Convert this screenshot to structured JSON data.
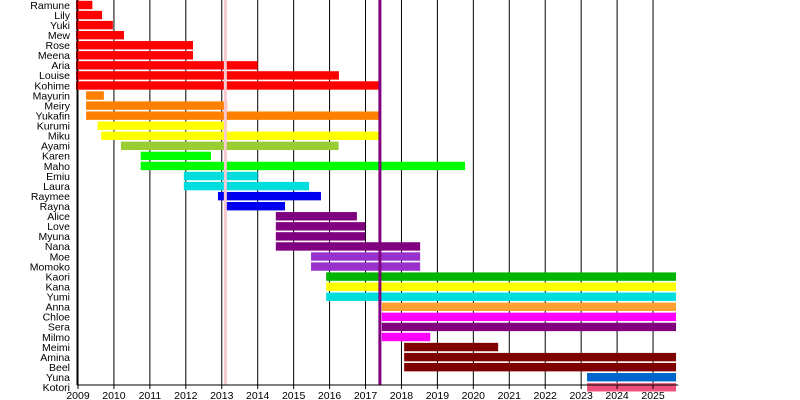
{
  "chart_data": {
    "type": "timeline",
    "title": "",
    "xlabel": "",
    "ylabel": "",
    "xlim": [
      2009,
      2025.7
    ],
    "x_ticks": [
      2009,
      2010,
      2011,
      2012,
      2013,
      2014,
      2015,
      2016,
      2017,
      2018,
      2019,
      2020,
      2021,
      2022,
      2023,
      2024,
      2025
    ],
    "grid": "vertical lines at each year",
    "markers": [
      {
        "x": 2013.1,
        "color": "#f8c8d0"
      },
      {
        "x": 2017.4,
        "color": "#800080"
      }
    ],
    "members": [
      {
        "name": "Ramune",
        "start": 2009.0,
        "end": 2009.4,
        "color": "#ff0000"
      },
      {
        "name": "Lily",
        "start": 2009.0,
        "end": 2009.67,
        "color": "#ff0000"
      },
      {
        "name": "Yuki",
        "start": 2009.0,
        "end": 2009.97,
        "color": "#ff0000"
      },
      {
        "name": "Mew",
        "start": 2009.0,
        "end": 2010.28,
        "color": "#ff0000"
      },
      {
        "name": "Rose",
        "start": 2009.0,
        "end": 2012.2,
        "color": "#ff0000"
      },
      {
        "name": "Meena",
        "start": 2009.0,
        "end": 2012.2,
        "color": "#ff0000"
      },
      {
        "name": "Aria",
        "start": 2009.0,
        "end": 2014.0,
        "color": "#ff0000"
      },
      {
        "name": "Louise",
        "start": 2009.0,
        "end": 2016.26,
        "color": "#ff0000"
      },
      {
        "name": "Kohime",
        "start": 2009.0,
        "end": 2017.4,
        "color": "#ff0000"
      },
      {
        "name": "Mayurin",
        "start": 2009.28,
        "end": 2009.72,
        "color": "#ff8000"
      },
      {
        "name": "Meiry",
        "start": 2009.28,
        "end": 2013.15,
        "color": "#ff8000"
      },
      {
        "name": "Yukafin",
        "start": 2009.28,
        "end": 2017.4,
        "color": "#ff8000"
      },
      {
        "name": "Kurumi",
        "start": 2009.6,
        "end": 2013.15,
        "color": "#ffff00"
      },
      {
        "name": "Miku",
        "start": 2009.7,
        "end": 2017.4,
        "color": "#ffff00"
      },
      {
        "name": "Ayami",
        "start": 2010.25,
        "end": 2016.25,
        "color": "#9acd32"
      },
      {
        "name": "Karen",
        "start": 2010.8,
        "end": 2012.7,
        "color": "#00ff00"
      },
      {
        "name": "Maho",
        "start": 2010.8,
        "end": 2019.77,
        "color": "#00ff00"
      },
      {
        "name": "Emiu",
        "start": 2012.0,
        "end": 2014.0,
        "color": "#00dddd"
      },
      {
        "name": "Laura",
        "start": 2012.0,
        "end": 2015.43,
        "color": "#00dddd"
      },
      {
        "name": "Raymee",
        "start": 2012.95,
        "end": 2015.76,
        "color": "#0000ee"
      },
      {
        "name": "Rayna",
        "start": 2013.12,
        "end": 2014.76,
        "color": "#0000ee"
      },
      {
        "name": "Alice",
        "start": 2014.56,
        "end": 2016.76,
        "color": "#800080"
      },
      {
        "name": "Love",
        "start": 2014.56,
        "end": 2016.99,
        "color": "#800080"
      },
      {
        "name": "Myuna",
        "start": 2014.56,
        "end": 2016.99,
        "color": "#800080"
      },
      {
        "name": "Nana",
        "start": 2014.56,
        "end": 2018.52,
        "color": "#800080"
      },
      {
        "name": "Moe",
        "start": 2015.54,
        "end": 2018.52,
        "color": "#9932cc"
      },
      {
        "name": "Momoko",
        "start": 2015.54,
        "end": 2018.52,
        "color": "#9932cc"
      },
      {
        "name": "Kaori",
        "start": 2015.96,
        "end": 2025.64,
        "color": "#00b400"
      },
      {
        "name": "Kana",
        "start": 2015.96,
        "end": 2025.64,
        "color": "#ffff00"
      },
      {
        "name": "Yumi",
        "start": 2015.96,
        "end": 2025.64,
        "color": "#00dddd"
      },
      {
        "name": "Anna",
        "start": 2017.51,
        "end": 2025.64,
        "color": "#ffa033"
      },
      {
        "name": "Chloe",
        "start": 2017.51,
        "end": 2025.64,
        "color": "#ff00ff"
      },
      {
        "name": "Sera",
        "start": 2017.51,
        "end": 2025.64,
        "color": "#800080"
      },
      {
        "name": "Milmo",
        "start": 2017.51,
        "end": 2018.8,
        "color": "#ff00ff"
      },
      {
        "name": "Meimi",
        "start": 2018.13,
        "end": 2020.69,
        "color": "#800000"
      },
      {
        "name": "Amina",
        "start": 2018.13,
        "end": 2025.64,
        "color": "#800000"
      },
      {
        "name": "Beel",
        "start": 2018.13,
        "end": 2025.64,
        "color": "#800000"
      },
      {
        "name": "Yuna",
        "start": 2023.22,
        "end": 2025.64,
        "color": "#0066cc"
      },
      {
        "name": "Kotori",
        "start": 2023.22,
        "end": 2025.64,
        "color": "#f0507a"
      }
    ]
  }
}
